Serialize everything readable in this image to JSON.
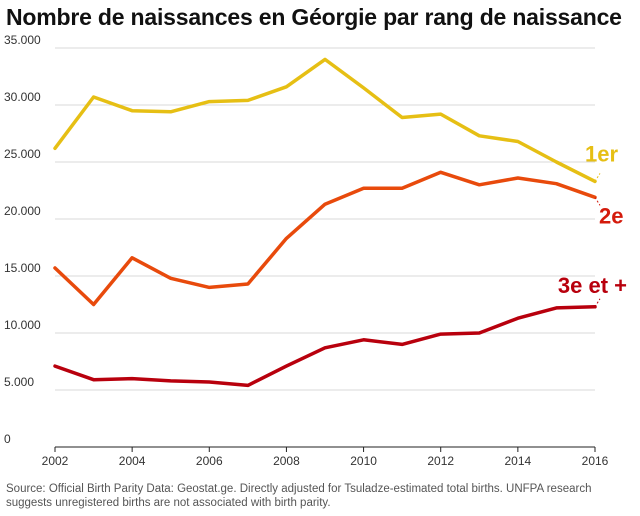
{
  "title": "Nombre de naissances en Géorgie par rang de naissance",
  "source": "Source: Official Birth Parity Data: Geostat.ge. Directly adjusted for Tsuladze-estimated total births. UNFPA research suggests unregistered births are not associated with birth parity.",
  "chart_data": {
    "type": "line",
    "title": "Nombre de naissances en Géorgie par rang de naissance",
    "xlabel": "",
    "ylabel": "",
    "x": [
      2002,
      2003,
      2004,
      2005,
      2006,
      2007,
      2008,
      2009,
      2010,
      2011,
      2012,
      2013,
      2014,
      2015,
      2016
    ],
    "xticks": [
      2002,
      2004,
      2006,
      2008,
      2010,
      2012,
      2014,
      2016
    ],
    "xtick_labels": [
      "2002",
      "2004",
      "2006",
      "2008",
      "2010",
      "2012",
      "2014",
      "2016"
    ],
    "yticks": [
      0,
      5000,
      10000,
      15000,
      20000,
      25000,
      30000,
      35000
    ],
    "ytick_labels": [
      "0",
      "5.000",
      "10.000",
      "15.000",
      "20.000",
      "25.000",
      "30.000",
      "35.000"
    ],
    "ylim": [
      0,
      35000
    ],
    "xlim": [
      2002,
      2016
    ],
    "grid": true,
    "series": [
      {
        "name": "1er",
        "color": "#e6bf14",
        "values": [
          26200,
          30700,
          29500,
          29400,
          30300,
          30400,
          31600,
          34000,
          31500,
          28900,
          29200,
          27300,
          26800,
          25000,
          23300
        ]
      },
      {
        "name": "2e",
        "color": "#e84a0c",
        "values": [
          15700,
          12500,
          16600,
          14800,
          14000,
          14300,
          18300,
          21300,
          22700,
          22700,
          24100,
          23000,
          23600,
          23100,
          21900
        ]
      },
      {
        "name": "3e et +",
        "color": "#b8000d",
        "values": [
          7100,
          5900,
          6000,
          5800,
          5700,
          5400,
          7100,
          8700,
          9400,
          9000,
          9900,
          10000,
          11300,
          12200,
          12300
        ]
      }
    ],
    "label_colors": {
      "1er": "#e6bf14",
      "2e": "#d41b0c",
      "3e et +": "#b8000d"
    },
    "legend": "inline-right"
  }
}
